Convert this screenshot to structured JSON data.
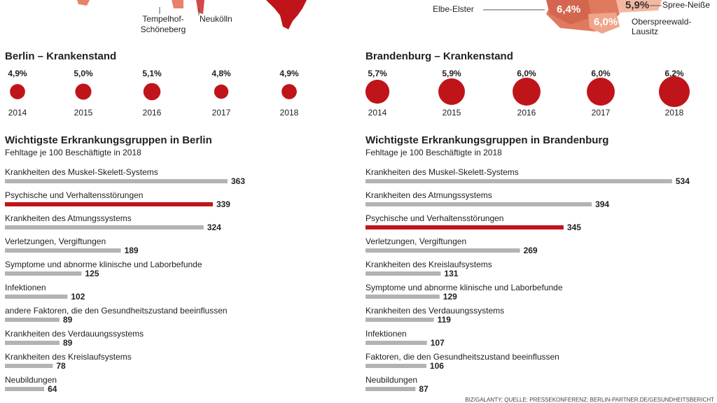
{
  "map": {
    "labels": [
      "Tempelhof-",
      "Schöneberg",
      "Neukölln",
      "Elbe-Elster",
      "6,4%",
      "5,9%",
      "Spree-Neiße",
      "6,0%",
      "Oberspreewald-",
      "Lausitz"
    ]
  },
  "source": "BIZ/GALANTY; QUELLE: PRESSEKONFERENZ; BERLIN-PARTNER.DE/GESUNDHEITSBERICHT",
  "chart_data": [
    {
      "type": "bubble",
      "title": "Berlin – Krankenstand",
      "color": "#c0141b",
      "categories": [
        "2014",
        "2015",
        "2016",
        "2017",
        "2018"
      ],
      "values": [
        4.9,
        5.0,
        5.1,
        4.8,
        4.9
      ],
      "value_labels": [
        "4,9%",
        "5,0%",
        "5,1%",
        "4,8%",
        "4,9%"
      ]
    },
    {
      "type": "bubble",
      "title": "Brandenburg – Krankenstand",
      "color": "#c0141b",
      "categories": [
        "2014",
        "2015",
        "2016",
        "2017",
        "2018"
      ],
      "values": [
        5.7,
        5.9,
        6.0,
        6.0,
        6.2
      ],
      "value_labels": [
        "5,7%",
        "5,9%",
        "6,0%",
        "6,0%",
        "6,2%"
      ]
    },
    {
      "type": "hbar",
      "title": "Wichtigste Erkrankungsgruppen in Berlin",
      "subtitle": "Fehltage je 100 Beschäftigte in 2018",
      "xlim": [
        0,
        400
      ],
      "categories": [
        "Krankheiten des Muskel-Skelett-Systems",
        "Psychische und Verhaltensstörungen",
        "Krankheiten des Atmungssystems",
        "Verletzungen, Vergiftungen",
        "Symptome und abnorme klinische und Laborbefunde",
        "Infektionen",
        "andere Faktoren, die den Gesundheitszustand beeinflussen",
        "Krankheiten des Verdauungssystems",
        "Krankheiten des Kreislaufsystems",
        "Neubildungen"
      ],
      "values": [
        363,
        339,
        324,
        189,
        125,
        102,
        89,
        89,
        78,
        64
      ],
      "colors": [
        "#b3b3b3",
        "#c0141b",
        "#b3b3b3",
        "#b3b3b3",
        "#b3b3b3",
        "#b3b3b3",
        "#b3b3b3",
        "#b3b3b3",
        "#b3b3b3",
        "#b3b3b3"
      ]
    },
    {
      "type": "hbar",
      "title": "Wichtigste Erkrankungsgruppen in Brandenburg",
      "subtitle": "Fehltage je 100 Beschäftigte in 2018",
      "xlim": [
        0,
        600
      ],
      "categories": [
        "Krankheiten des Muskel-Skelett-Systems",
        "Krankheiten des Atmungssystems",
        "Psychische und Verhaltensstörungen",
        "Verletzungen, Vergiftungen",
        "Krankheiten des Kreislaufsystems",
        "Symptome und abnorme klinische und Laborbefunde",
        "Krankheiten des Verdauungssystems",
        "Infektionen",
        "Faktoren, die den Gesundheitszustand beeinflussen",
        "Neubildungen"
      ],
      "values": [
        534,
        394,
        345,
        269,
        131,
        129,
        119,
        107,
        106,
        87
      ],
      "colors": [
        "#b3b3b3",
        "#b3b3b3",
        "#c0141b",
        "#b3b3b3",
        "#b3b3b3",
        "#b3b3b3",
        "#b3b3b3",
        "#b3b3b3",
        "#b3b3b3",
        "#b3b3b3"
      ]
    }
  ]
}
